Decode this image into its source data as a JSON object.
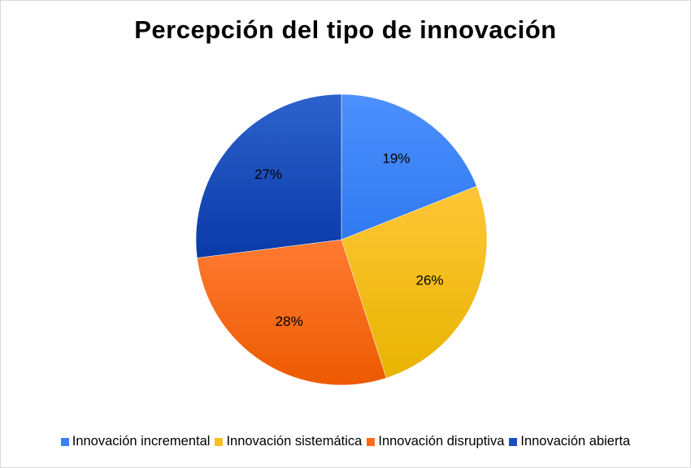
{
  "chart_data": {
    "type": "pie",
    "title": "Percepción del tipo de innovación",
    "categories": [
      "Innovación incremental",
      "Innovación sistemática",
      "Innovación disruptiva",
      "Innovación abierta"
    ],
    "values": [
      19,
      26,
      28,
      27
    ],
    "data_labels": [
      "19%",
      "26%",
      "28%",
      "27%"
    ],
    "colors": [
      "#3b82f6",
      "#fbbf24",
      "#ff6b1a",
      "#1e4fc2"
    ],
    "legend_position": "bottom",
    "start_angle": "12 o'clock, clockwise"
  }
}
